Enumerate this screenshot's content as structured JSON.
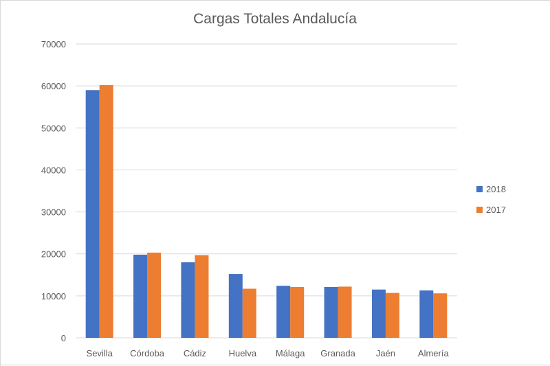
{
  "chart_data": {
    "type": "bar",
    "title": "Cargas Totales Andalucía",
    "categories": [
      "Sevilla",
      "Córdoba",
      "Cádiz",
      "Huelva",
      "Málaga",
      "Granada",
      "Jaén",
      "Almería"
    ],
    "series": [
      {
        "name": "2018",
        "color": "#4472c4",
        "values": [
          59000,
          19800,
          18000,
          15200,
          12400,
          12100,
          11500,
          11300
        ]
      },
      {
        "name": "2017",
        "color": "#ed7d31",
        "values": [
          60200,
          20300,
          19700,
          11700,
          12100,
          12200,
          10700,
          10600
        ]
      }
    ],
    "yticks": [
      "0",
      "10000",
      "20000",
      "30000",
      "40000",
      "50000",
      "60000",
      "70000"
    ],
    "ylim": [
      0,
      70000
    ],
    "xlabel": "",
    "ylabel": "",
    "grid": true,
    "legend_position": "right"
  }
}
